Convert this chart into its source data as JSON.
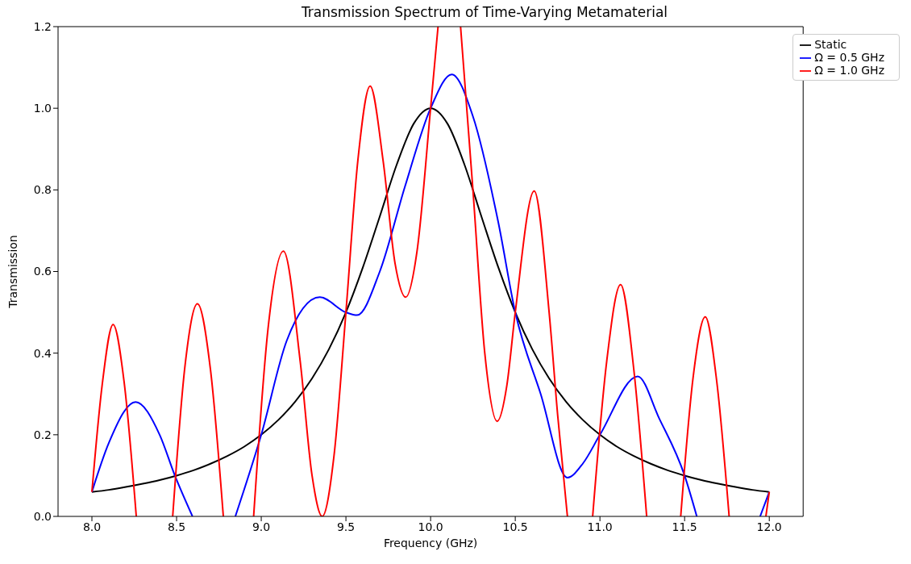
{
  "chart_data": {
    "type": "line",
    "title": "Transmission Spectrum of Time-Varying Metamaterial",
    "xlabel": "Frequency (GHz)",
    "ylabel": "Transmission",
    "xlim": [
      7.8,
      12.2
    ],
    "xticks": [
      {
        "value": 8,
        "label": "8.0"
      },
      8.5,
      {
        "value": 9,
        "label": "9.0"
      },
      9.5,
      {
        "value": 10,
        "label": "10.0"
      },
      10.5,
      {
        "value": 11,
        "label": "11.0"
      },
      11.5,
      {
        "value": 12,
        "label": "12.0"
      }
    ],
    "ylim": [
      0,
      1.2
    ],
    "yticks": [
      {
        "value": 0,
        "label": "0.0"
      },
      0.2,
      0.4,
      0.6,
      0.8,
      {
        "value": 1,
        "label": "1.0"
      },
      1.2
    ],
    "legend": "top right",
    "line_style": "solid",
    "marker": "none",
    "series": [
      {
        "name": "Static",
        "color": "#000000",
        "x": [
          8.0,
          8.1,
          8.2,
          8.3,
          8.4,
          8.5,
          8.6,
          8.7,
          8.8,
          8.9,
          9.0,
          9.1,
          9.2,
          9.3,
          9.4,
          9.5,
          9.6,
          9.7,
          9.8,
          9.9,
          10.0,
          10.1,
          10.2,
          10.3,
          10.4,
          10.5,
          10.6,
          10.7,
          10.8,
          10.9,
          11.0,
          11.1,
          11.2,
          11.3,
          11.4,
          11.5,
          11.6,
          11.7,
          11.8,
          11.9,
          12.0
        ],
        "values": [
          0.06,
          0.065,
          0.072,
          0.08,
          0.089,
          0.1,
          0.113,
          0.129,
          0.148,
          0.171,
          0.2,
          0.236,
          0.281,
          0.338,
          0.41,
          0.5,
          0.61,
          0.735,
          0.862,
          0.962,
          1.0,
          0.962,
          0.862,
          0.735,
          0.61,
          0.5,
          0.41,
          0.338,
          0.281,
          0.236,
          0.2,
          0.171,
          0.148,
          0.129,
          0.113,
          0.1,
          0.089,
          0.08,
          0.072,
          0.065,
          0.06
        ]
      },
      {
        "name": "Ω = 0.5 GHz",
        "color": "#0000ff",
        "x": [
          8.0,
          8.1,
          8.258,
          8.4,
          8.49,
          8.594,
          8.72,
          8.847,
          9.0,
          9.15,
          9.346,
          9.5,
          9.566,
          9.7,
          9.85,
          10.0,
          10.125,
          10.25,
          10.4,
          10.5,
          10.65,
          10.808,
          10.9,
          11.0,
          11.223,
          11.35,
          11.5,
          11.572,
          11.75,
          11.946,
          12.0
        ],
        "values": [
          0.06,
          0.18,
          0.28,
          0.2,
          0.1,
          0,
          null,
          0,
          0.2,
          0.43,
          0.537,
          0.5,
          0.493,
          0.6,
          0.81,
          1.0,
          1.083,
          0.98,
          0.72,
          0.5,
          0.3,
          0.095,
          0.13,
          0.2,
          0.343,
          0.24,
          0.1,
          0,
          null,
          0,
          0.06
        ]
      },
      {
        "name": "Ω = 1.0 GHz",
        "color": "#ff0000",
        "x": [
          8.0,
          8.06,
          8.125,
          8.19,
          8.262,
          8.37,
          8.477,
          8.55,
          8.623,
          8.7,
          8.776,
          8.86,
          8.955,
          9.04,
          9.131,
          9.23,
          9.3,
          9.36,
          9.43,
          9.5,
          9.57,
          9.643,
          9.72,
          9.79,
          9.853,
          9.92,
          10.0,
          10.044,
          10.11,
          10.177,
          10.25,
          10.32,
          10.393,
          10.45,
          10.5,
          10.612,
          10.7,
          10.75,
          10.808,
          10.88,
          10.957,
          11.04,
          11.122,
          11.2,
          11.276,
          11.38,
          11.477,
          11.55,
          11.622,
          11.69,
          11.763,
          11.87,
          11.98,
          12.0
        ],
        "values": [
          0.06,
          0.32,
          0.47,
          0.33,
          0,
          null,
          0,
          0.37,
          0.521,
          0.36,
          0,
          null,
          0,
          0.46,
          0.65,
          0.38,
          0.1,
          0,
          0.15,
          0.5,
          0.87,
          1.054,
          0.87,
          0.62,
          0.537,
          0.65,
          1.0,
          1.2,
          null,
          1.2,
          0.8,
          0.4,
          0.233,
          0.32,
          0.5,
          0.797,
          0.5,
          0.25,
          0,
          null,
          0,
          0.38,
          0.568,
          0.36,
          0,
          null,
          0,
          0.34,
          0.489,
          0.33,
          0,
          null,
          0,
          0.06
        ]
      }
    ]
  }
}
